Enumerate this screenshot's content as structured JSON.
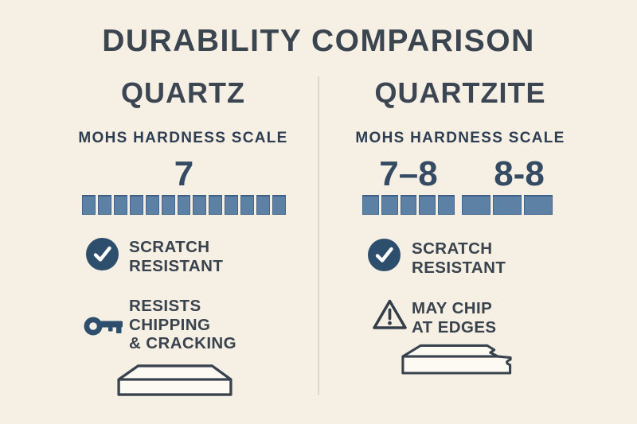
{
  "title": "DURABILITY COMPARISON",
  "colors": {
    "background": "#f6efe4",
    "heading_text": "#3b4550",
    "navy_text": "#2d3e52",
    "square_fill": "#5d81a4",
    "square_border": "#44668c",
    "badge_fill": "#2e4e6d",
    "divider": "#ddd6ca",
    "slab_fill": "#fdfaf3"
  },
  "columns": [
    {
      "name": "QUARTZ",
      "scale_label": "MOHS HARDNESS SCALE",
      "hardness": [
        {
          "value": "7",
          "squares": 13
        }
      ],
      "features": [
        {
          "icon": "check-circle-icon",
          "lines": [
            "SCRATCH",
            "RESISTANT"
          ]
        },
        {
          "icon": "key-icon",
          "lines": [
            "RESISTS",
            "CHIPPING",
            "& CRACKING"
          ]
        }
      ],
      "slab": "intact countertop slab"
    },
    {
      "name": "QUARTZITE",
      "scale_label": "MOHS HARDNESS SCALE",
      "hardness": [
        {
          "value": "7–8",
          "squares": 5
        },
        {
          "value": "8-8",
          "squares": 3
        }
      ],
      "features": [
        {
          "icon": "check-circle-icon",
          "lines": [
            "SCRATCH",
            "RESISTANT"
          ]
        },
        {
          "icon": "warning-triangle-icon",
          "lines": [
            "MAY CHIP",
            "AT EDGES"
          ]
        }
      ],
      "slab": "countertop slab with chipped edge"
    }
  ]
}
